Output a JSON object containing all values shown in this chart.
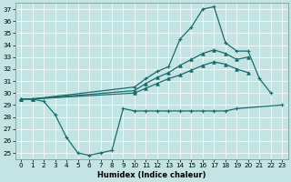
{
  "xlabel": "Humidex (Indice chaleur)",
  "bg_color": "#c4e4e4",
  "line_color": "#1a6b6b",
  "xlim": [
    -0.5,
    23.5
  ],
  "ylim": [
    24.5,
    37.5
  ],
  "yticks": [
    25,
    26,
    27,
    28,
    29,
    30,
    31,
    32,
    33,
    34,
    35,
    36,
    37
  ],
  "xticks": [
    0,
    1,
    2,
    3,
    4,
    5,
    6,
    7,
    8,
    9,
    10,
    11,
    12,
    13,
    14,
    15,
    16,
    17,
    18,
    19,
    20,
    21,
    22,
    23
  ],
  "curves": {
    "line_spike": {
      "x": [
        0,
        1,
        10,
        11,
        12,
        13,
        14,
        15,
        16,
        17,
        18,
        19,
        20,
        21,
        22
      ],
      "y": [
        29.5,
        29.5,
        30.5,
        31.2,
        31.8,
        32.2,
        34.5,
        35.5,
        37.0,
        37.2,
        34.2,
        33.5,
        33.5,
        31.2,
        30.0
      ]
    },
    "line_upper": {
      "x": [
        0,
        1,
        10,
        11,
        12,
        13,
        14,
        15,
        16,
        17,
        18,
        19,
        20
      ],
      "y": [
        29.5,
        29.5,
        30.2,
        30.8,
        31.3,
        31.7,
        32.3,
        32.8,
        33.3,
        33.6,
        33.3,
        32.8,
        33.0
      ]
    },
    "line_mid": {
      "x": [
        0,
        1,
        10,
        11,
        12,
        13,
        14,
        15,
        16,
        17,
        18,
        19,
        20
      ],
      "y": [
        29.5,
        29.5,
        30.0,
        30.4,
        30.8,
        31.2,
        31.5,
        31.9,
        32.3,
        32.6,
        32.4,
        32.0,
        31.7
      ]
    },
    "line_dip": {
      "x": [
        0,
        1,
        2,
        3,
        4,
        5,
        6,
        7,
        8,
        9,
        10,
        11,
        12,
        13,
        14,
        15,
        16,
        17,
        18,
        19,
        23
      ],
      "y": [
        29.5,
        29.5,
        29.3,
        28.2,
        26.3,
        25.0,
        24.8,
        25.0,
        25.2,
        28.7,
        28.5,
        28.5,
        28.5,
        28.5,
        28.5,
        28.5,
        28.5,
        28.5,
        28.5,
        28.7,
        29.0
      ]
    }
  }
}
